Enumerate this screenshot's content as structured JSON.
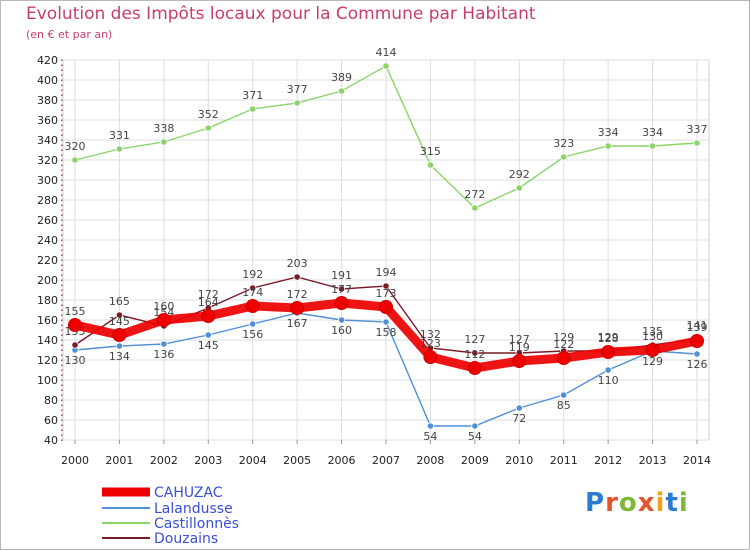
{
  "title": "Evolution des Impôts locaux pour la Commune par Habitant",
  "subtitle": "(en € et par an)",
  "logo": {
    "text": "Proxiti",
    "colors": [
      "#2b7bd0",
      "#e5532a",
      "#7cb83a",
      "#e5532a",
      "#f1a21a",
      "#2b7bd0",
      "#7cb83a"
    ]
  },
  "chart_data": {
    "type": "line",
    "x": [
      2000,
      2001,
      2002,
      2003,
      2004,
      2005,
      2006,
      2007,
      2008,
      2009,
      2010,
      2011,
      2012,
      2013,
      2014
    ],
    "ylim": [
      40,
      420
    ],
    "yticks": [
      40,
      60,
      80,
      100,
      120,
      140,
      160,
      180,
      200,
      220,
      240,
      260,
      280,
      300,
      320,
      340,
      360,
      380,
      400,
      420
    ],
    "grid": true,
    "legend_position": "bottom-left",
    "series": [
      {
        "name": "CAHUZAC",
        "color": "#ee0000",
        "values": [
          155,
          145,
          160,
          164,
          174,
          172,
          177,
          173,
          123,
          112,
          119,
          122,
          128,
          130,
          139
        ],
        "labels": [
          "155",
          "145",
          "160",
          "164",
          "174",
          "172",
          "177",
          "173",
          "123",
          "112",
          "119",
          "122",
          "128",
          "130",
          "139"
        ]
      },
      {
        "name": "Lalandusse",
        "color": "#4f8fd6",
        "values": [
          130,
          134,
          136,
          145,
          156,
          167,
          160,
          158,
          54,
          54,
          72,
          85,
          110,
          129,
          126
        ],
        "labels": [
          "130",
          "134",
          "136",
          "145",
          "156",
          "167",
          "160",
          "158",
          "54",
          "54",
          "72",
          "85",
          "110",
          "129",
          "126"
        ]
      },
      {
        "name": "Castillonnès",
        "color": "#8ad46a",
        "values": [
          320,
          331,
          338,
          352,
          371,
          377,
          389,
          414,
          315,
          272,
          292,
          323,
          334,
          334,
          337
        ],
        "labels": [
          "320",
          "331",
          "338",
          "352",
          "371",
          "377",
          "389",
          "414",
          "315",
          "272",
          "292",
          "323",
          "334",
          "334",
          "337"
        ]
      },
      {
        "name": "Douzains",
        "color": "#7a1a24",
        "values": [
          135,
          165,
          154,
          172,
          192,
          203,
          191,
          194,
          132,
          127,
          127,
          129,
          129,
          135,
          141
        ],
        "labels": [
          "135",
          "165",
          "154",
          "172",
          "192",
          "203",
          "191",
          "194",
          "132",
          "127",
          "127",
          "129",
          "129",
          "135",
          "141"
        ]
      }
    ]
  }
}
